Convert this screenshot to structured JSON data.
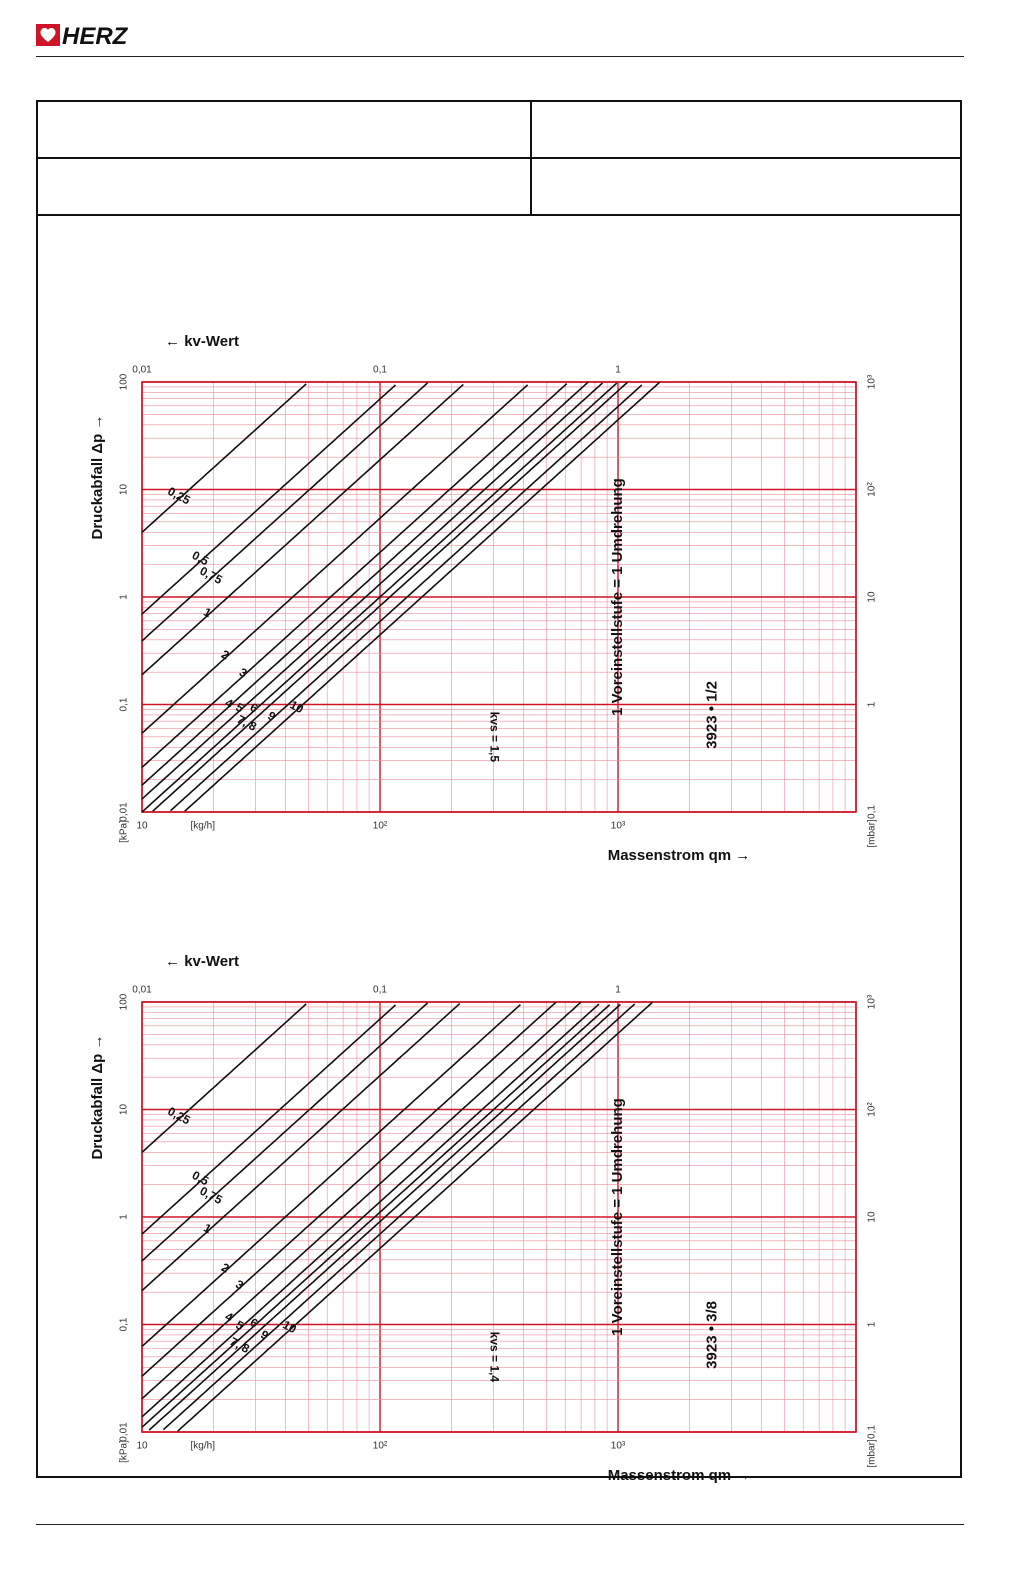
{
  "header": {
    "logo_text": "HERZ"
  },
  "colors": {
    "grid": "#d01427",
    "gridMinor": "#ec8f9a",
    "curve": "#111111",
    "frame": "#111111"
  },
  "chart_data": [
    {
      "type": "line",
      "title": "3923 • 1/2",
      "subtitle": "1 Voreinstellstufe = 1 Umdrehung",
      "kvs_label": "kvs = 1,5",
      "ylabel": "Massenstrom qm",
      "y_unit": "[kg/h]",
      "xlabel": "Druckabfall Δp",
      "x_unit_kpa": "[kPa]",
      "x_unit_mbar": "[mbar]",
      "kv_label": "kv-Wert",
      "x_scale": "log",
      "y_scale": "log",
      "xlim": [
        0.01,
        100
      ],
      "ylim": [
        10,
        10000
      ],
      "kv_ticks": [
        "0,01",
        "0,1",
        "1"
      ],
      "mbar_ticks": [
        "0,1",
        "1",
        "10",
        "10²",
        "10³"
      ],
      "kpa_ticks": [
        "0,01",
        "0,1",
        "1",
        "10",
        "100"
      ],
      "massflow_ticks": [
        "10",
        "10²",
        "10³"
      ],
      "series": [
        {
          "name": "0,25",
          "kv": 0.05
        },
        {
          "name": "0,5",
          "kv": 0.12
        },
        {
          "name": "0,75",
          "kv": 0.16
        },
        {
          "name": "1",
          "kv": 0.23
        },
        {
          "name": "2",
          "kv": 0.43
        },
        {
          "name": "3",
          "kv": 0.62
        },
        {
          "name": "4",
          "kv": 0.75
        },
        {
          "name": "5",
          "kv": 0.87
        },
        {
          "name": "6",
          "kv": 1.0
        },
        {
          "name": "7, 8",
          "kv": 1.1
        },
        {
          "name": "9",
          "kv": 1.3
        },
        {
          "name": "10",
          "kv": 1.5
        }
      ]
    },
    {
      "type": "line",
      "title": "3923 • 3/8",
      "subtitle": "1 Voreinstellstufe = 1 Umdrehung",
      "kvs_label": "kvs = 1,4",
      "ylabel": "Massenstrom qm",
      "y_unit": "[kg/h]",
      "xlabel": "Druckabfall Δp",
      "x_unit_kpa": "[kPa]",
      "x_unit_mbar": "[mbar]",
      "kv_label": "kv-Wert",
      "x_scale": "log",
      "y_scale": "log",
      "xlim": [
        0.01,
        100
      ],
      "ylim": [
        10,
        10000
      ],
      "kv_ticks": [
        "0,01",
        "0,1",
        "1"
      ],
      "mbar_ticks": [
        "0,1",
        "1",
        "10",
        "10²",
        "10³"
      ],
      "kpa_ticks": [
        "0,01",
        "0,1",
        "1",
        "10",
        "100"
      ],
      "massflow_ticks": [
        "10",
        "10²",
        "10³"
      ],
      "series": [
        {
          "name": "0,25",
          "kv": 0.05
        },
        {
          "name": "0,5",
          "kv": 0.12
        },
        {
          "name": "0,75",
          "kv": 0.16
        },
        {
          "name": "1",
          "kv": 0.22
        },
        {
          "name": "2",
          "kv": 0.4
        },
        {
          "name": "3",
          "kv": 0.55
        },
        {
          "name": "4",
          "kv": 0.7
        },
        {
          "name": "5",
          "kv": 0.85
        },
        {
          "name": "6",
          "kv": 0.95
        },
        {
          "name": "7, 8",
          "kv": 1.05
        },
        {
          "name": "9",
          "kv": 1.2
        },
        {
          "name": "10",
          "kv": 1.4
        }
      ]
    }
  ]
}
